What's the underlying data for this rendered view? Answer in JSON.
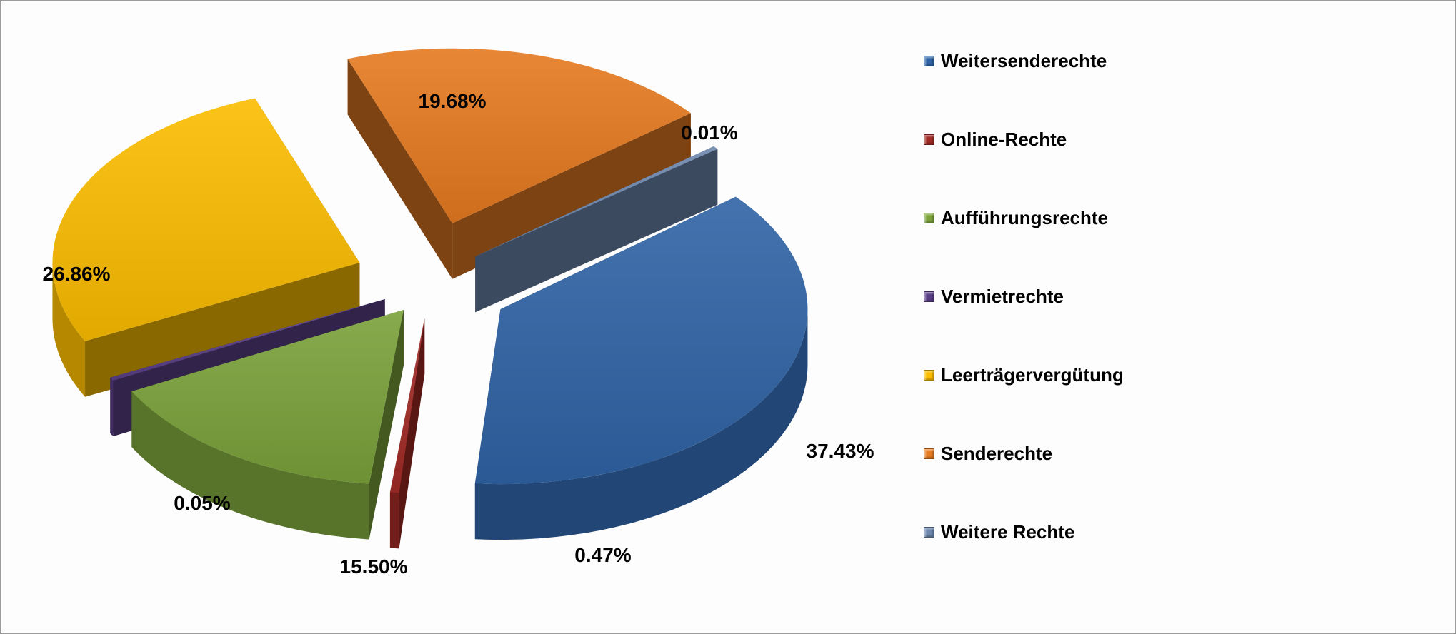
{
  "chart_data": {
    "type": "pie",
    "title": "",
    "unit": "%",
    "legend_position": "right",
    "slices": [
      {
        "name": "Weitersenderechte",
        "value": 37.43,
        "label": "37.43%",
        "color": "#2f63a5"
      },
      {
        "name": "Online-Rechte",
        "value": 0.47,
        "label": "0.47%",
        "color": "#a12a25"
      },
      {
        "name": "Aufführungsrechte",
        "value": 15.5,
        "label": "15.50%",
        "color": "#7aa13a"
      },
      {
        "name": "Vermietrechte",
        "value": 0.05,
        "label": "0.05%",
        "color": "#5a3f86"
      },
      {
        "name": "Leerträgervergütung",
        "value": 26.86,
        "label": "26.86%",
        "color": "#fbbd00"
      },
      {
        "name": "Senderechte",
        "value": 19.68,
        "label": "19.68%",
        "color": "#e57a20"
      },
      {
        "name": "Weitere Rechte",
        "value": 0.01,
        "label": "0.01%",
        "color": "#6d87ad"
      }
    ]
  }
}
